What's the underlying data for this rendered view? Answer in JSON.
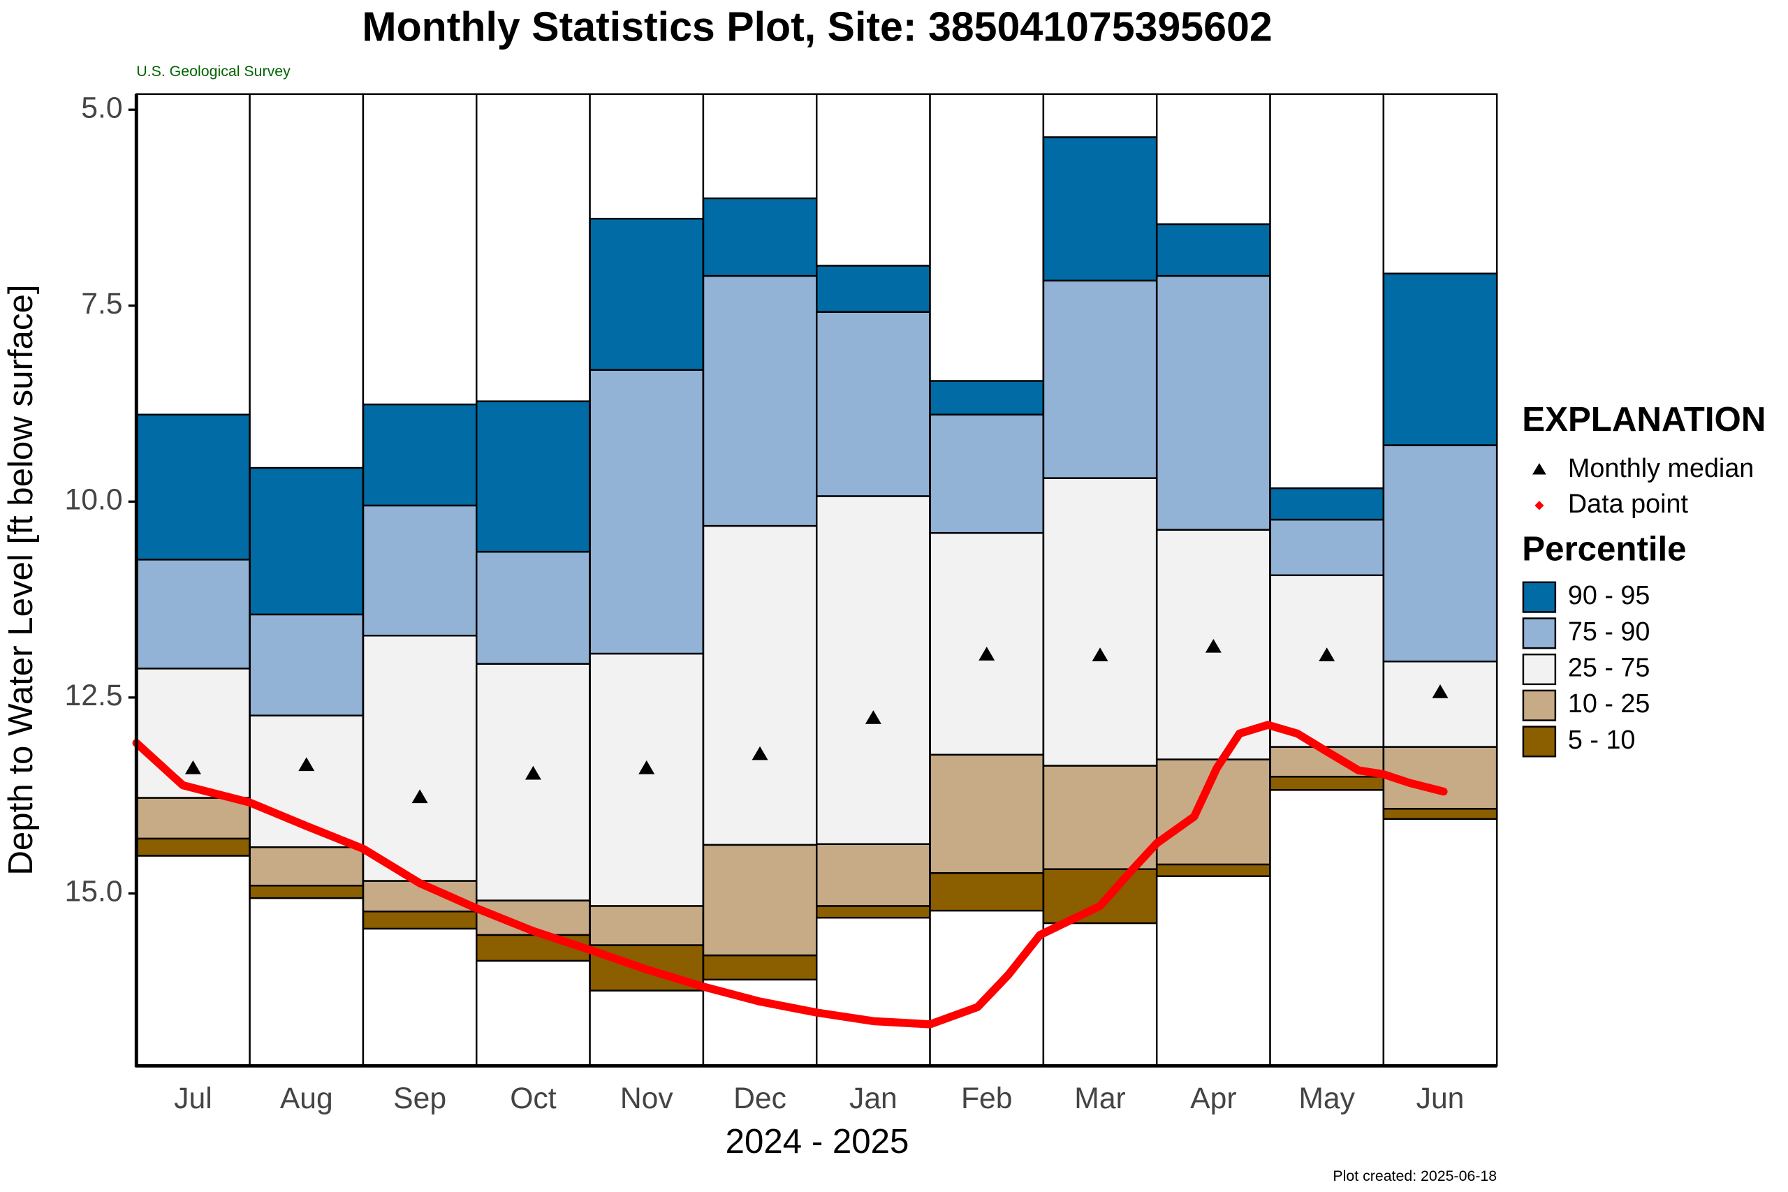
{
  "chart_data": {
    "type": "percentile-columns",
    "title": "Monthly Statistics Plot, Site: 385041075395602",
    "subtitle": "U.S. Geological Survey",
    "y_label": "Depth to Water Level [ft below surface]",
    "x_label": "2024 - 2025",
    "footnote": "Plot created: 2025-06-18",
    "legend_title": "EXPLANATION",
    "percentile_title": "Percentile",
    "categories": [
      "Jul",
      "Aug",
      "Sep",
      "Oct",
      "Nov",
      "Dec",
      "Jan",
      "Feb",
      "Mar",
      "Apr",
      "May",
      "Jun"
    ],
    "ylim": [
      4.8,
      17.2
    ],
    "y_inverted": true,
    "yticks": [
      {
        "value": 5,
        "label": "5.0"
      },
      7.5,
      {
        "value": 10,
        "label": "10.0"
      },
      12.5,
      {
        "value": 15,
        "label": "15.0"
      }
    ],
    "xlim": [
      0,
      12
    ],
    "series": [
      {
        "values": [
          14.52,
          15.06,
          15.45,
          15.86,
          16.24,
          16.1,
          15.31,
          15.22,
          15.38,
          14.78,
          13.68,
          14.05
        ]
      },
      {
        "values": [
          14.3,
          14.9,
          15.23,
          15.53,
          15.66,
          15.79,
          15.16,
          14.74,
          14.69,
          14.63,
          13.51,
          13.92
        ]
      },
      {
        "values": [
          13.78,
          14.41,
          14.84,
          15.09,
          15.16,
          14.38,
          14.37,
          13.23,
          13.37,
          13.29,
          13.13,
          13.13
        ]
      },
      {
        "values": [
          12.13,
          12.73,
          11.71,
          12.07,
          11.94,
          10.31,
          9.93,
          10.4,
          9.7,
          10.36,
          10.94,
          12.04
        ]
      },
      {
        "values": [
          10.74,
          11.44,
          10.05,
          10.64,
          8.32,
          7.12,
          7.58,
          8.89,
          7.18,
          7.12,
          10.23,
          9.28
        ]
      },
      {
        "values": [
          8.89,
          9.57,
          8.76,
          8.72,
          6.39,
          6.13,
          6.99,
          8.46,
          5.35,
          6.46,
          9.83,
          7.09
        ]
      }
    ],
    "percentile_legend": [
      {
        "name": "90 - 95",
        "color": "#006ba4"
      },
      {
        "name": "75 - 90",
        "color": "#92b2d6"
      },
      {
        "name": "25 - 75",
        "color": "#f2f2f2"
      },
      {
        "name": "10 - 25",
        "color": "#c7aa86"
      },
      {
        "name": "5 - 10",
        "color": "#8b5e00"
      }
    ],
    "median": {
      "name": "Monthly median",
      "color": "#000000",
      "values": [
        13.39,
        13.35,
        13.76,
        13.46,
        13.39,
        13.21,
        12.75,
        11.94,
        11.95,
        11.84,
        11.95,
        12.42
      ]
    },
    "data_line": {
      "name": "Data point",
      "color": "#ff0000",
      "x": [
        0,
        0.41,
        1,
        1.5,
        2,
        2.5,
        3,
        3.5,
        4,
        4.5,
        5,
        5.5,
        6,
        6.5,
        7,
        7.42,
        7.69,
        7.97,
        8.5,
        8.77,
        9,
        9.33,
        9.53,
        9.73,
        9.98,
        10.24,
        10.49,
        10.78,
        11,
        11.23,
        11.53
      ],
      "values": [
        13.08,
        13.62,
        13.84,
        14.14,
        14.43,
        14.87,
        15.19,
        15.48,
        15.72,
        15.97,
        16.19,
        16.38,
        16.52,
        16.63,
        16.67,
        16.45,
        16.04,
        15.53,
        15.16,
        14.72,
        14.36,
        14.02,
        13.4,
        12.96,
        12.85,
        12.96,
        13.18,
        13.43,
        13.48,
        13.59,
        13.7
      ]
    }
  }
}
